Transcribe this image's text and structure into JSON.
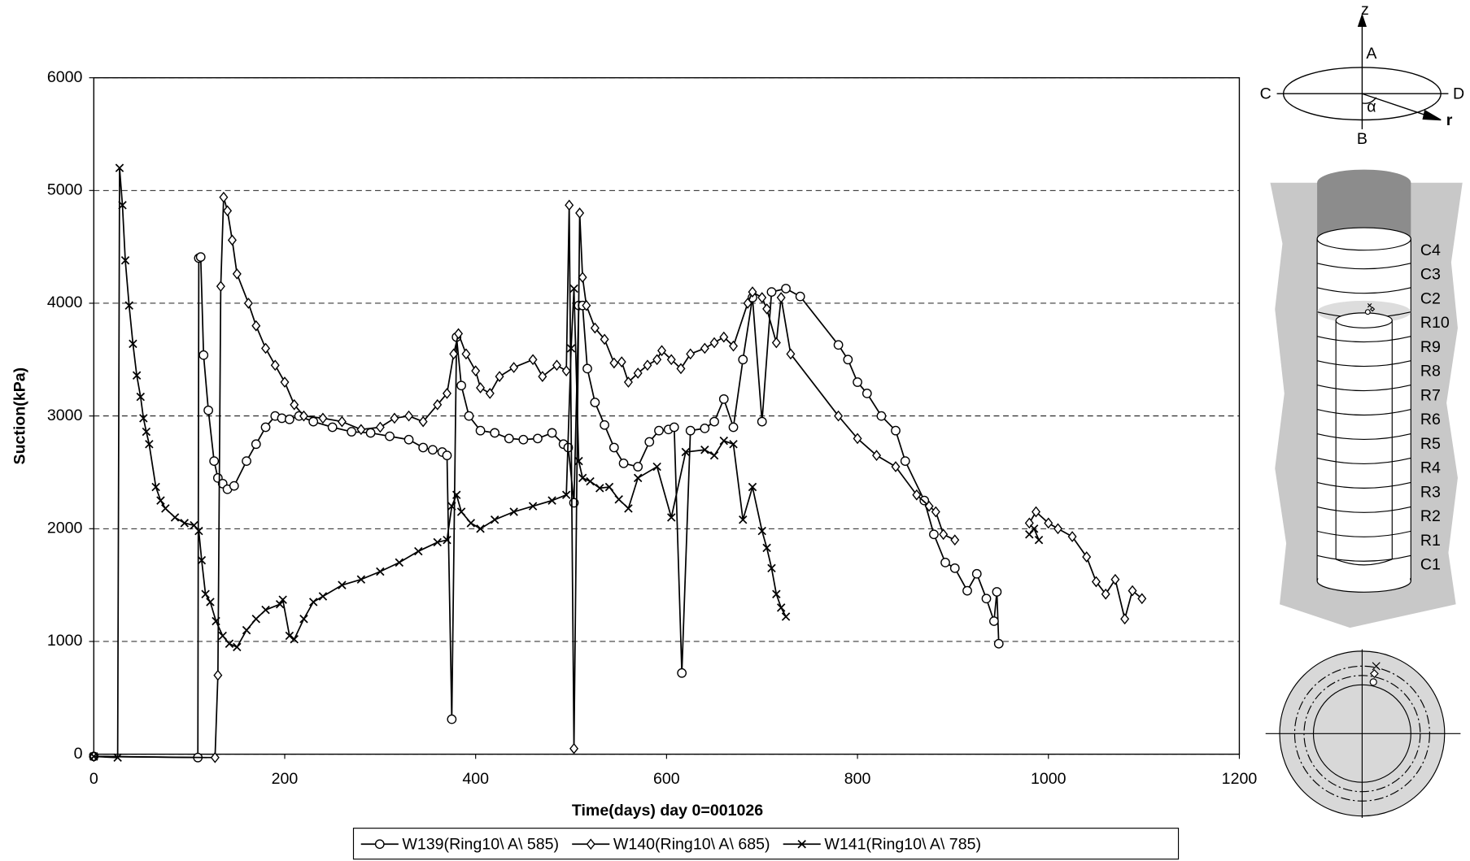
{
  "chart_data": {
    "type": "line",
    "xlabel": "Time(days)  day 0=001026",
    "ylabel": "Suction(kPa)",
    "xlim": [
      0,
      1200
    ],
    "ylim": [
      0,
      6000
    ],
    "xticks": [
      0,
      200,
      400,
      600,
      800,
      1000,
      1200
    ],
    "yticks": [
      0,
      1000,
      2000,
      3000,
      4000,
      5000,
      6000
    ],
    "grid": true,
    "legend": "bottom",
    "series": [
      {
        "name": "W139(Ring10\\ A\\ 585)",
        "color": "#000000",
        "marker": "circle",
        "x": [
          0,
          109,
          110,
          112,
          115,
          120,
          126,
          130,
          135,
          140,
          147,
          160,
          170,
          180,
          190,
          197,
          205,
          215,
          230,
          250,
          270,
          290,
          310,
          330,
          345,
          355,
          365,
          370,
          375,
          380,
          385,
          393,
          405,
          420,
          435,
          450,
          465,
          480,
          492,
          497,
          503,
          508,
          512,
          517,
          525,
          535,
          545,
          555,
          570,
          582,
          592,
          602,
          608,
          616,
          625,
          640,
          650,
          660,
          670,
          680,
          690,
          700,
          710,
          725,
          740,
          780,
          790,
          800,
          810,
          825,
          840,
          850,
          870,
          880,
          892,
          902,
          915,
          925,
          935,
          943,
          946,
          948
        ],
        "values": [
          -20,
          -30,
          4400,
          4410,
          3540,
          3050,
          2600,
          2450,
          2400,
          2350,
          2380,
          2600,
          2750,
          2900,
          3000,
          2980,
          2970,
          3000,
          2950,
          2900,
          2860,
          2850,
          2820,
          2790,
          2720,
          2700,
          2680,
          2650,
          310,
          3700,
          3270,
          3000,
          2870,
          2850,
          2800,
          2790,
          2800,
          2850,
          2750,
          2720,
          2230,
          3980,
          3980,
          3420,
          3120,
          2920,
          2720,
          2580,
          2550,
          2770,
          2870,
          2880,
          2900,
          720,
          2870,
          2890,
          2950,
          3150,
          2900,
          3500,
          4050,
          2950,
          4100,
          4130,
          4060,
          3630,
          3500,
          3300,
          3200,
          3000,
          2870,
          2600,
          2250,
          1950,
          1700,
          1650,
          1450,
          1600,
          1380,
          1180,
          1440,
          980
        ]
      },
      {
        "name": "W140(Ring10\\ A\\ 685)",
        "color": "#000000",
        "marker": "diamond",
        "x": [
          0,
          127,
          130,
          133,
          136,
          140,
          145,
          150,
          162,
          170,
          180,
          190,
          200,
          210,
          220,
          240,
          260,
          280,
          300,
          315,
          330,
          345,
          360,
          370,
          377,
          382,
          390,
          400,
          405,
          415,
          425,
          440,
          460,
          470,
          485,
          495,
          498,
          503,
          509,
          512,
          516,
          525,
          535,
          545,
          553,
          560,
          570,
          580,
          590,
          595,
          605,
          615,
          625,
          640,
          650,
          660,
          670,
          685,
          690,
          700,
          705,
          715,
          720,
          730,
          780,
          800,
          820,
          840,
          862,
          875,
          882,
          890,
          902,
          940,
          980,
          987,
          1000,
          1010,
          1025,
          1040,
          1050,
          1060,
          1070,
          1080,
          1088,
          1098
        ],
        "values": [
          -20,
          -30,
          700,
          4150,
          4940,
          4820,
          4560,
          4260,
          4000,
          3800,
          3600,
          3450,
          3300,
          3100,
          3000,
          2980,
          2950,
          2880,
          2900,
          2980,
          3000,
          2950,
          3100,
          3200,
          3550,
          3730,
          3550,
          3400,
          3250,
          3200,
          3350,
          3430,
          3500,
          3350,
          3450,
          3400,
          4870,
          50,
          4800,
          4230,
          3980,
          3780,
          3680,
          3470,
          3480,
          3300,
          3380,
          3450,
          3500,
          3580,
          3500,
          3420,
          3550,
          3600,
          3650,
          3700,
          3620,
          4000,
          4100,
          4050,
          3950,
          3650,
          4050,
          3550,
          3000,
          2800,
          2650,
          2550,
          2300,
          2200,
          2150,
          1950,
          1900,
          null,
          2050,
          2150,
          2050,
          2000,
          1930,
          1750,
          1530,
          1420,
          1550,
          1200,
          1450,
          1380
        ]
      },
      {
        "name": "W141(Ring10\\ A\\ 785)",
        "color": "#000000",
        "marker": "cross",
        "x": [
          0,
          25,
          27,
          30,
          33,
          37,
          41,
          45,
          49,
          52,
          55,
          58,
          65,
          70,
          75,
          85,
          95,
          105,
          110,
          113,
          117,
          122,
          128,
          135,
          142,
          150,
          160,
          170,
          180,
          195,
          198,
          205,
          210,
          220,
          230,
          240,
          260,
          280,
          300,
          320,
          340,
          360,
          370,
          375,
          380,
          385,
          395,
          405,
          420,
          440,
          460,
          480,
          495,
          500,
          503,
          508,
          512,
          520,
          530,
          540,
          550,
          560,
          570,
          590,
          605,
          620,
          640,
          650,
          660,
          670,
          680,
          690,
          700,
          705,
          710,
          715,
          720,
          725,
          850,
          980,
          985,
          990
        ],
        "values": [
          -20,
          -30,
          5200,
          4870,
          4380,
          3980,
          3640,
          3360,
          3170,
          2980,
          2860,
          2750,
          2370,
          2250,
          2180,
          2100,
          2050,
          2030,
          1980,
          1720,
          1420,
          1350,
          1180,
          1050,
          980,
          950,
          1100,
          1200,
          1280,
          1330,
          1370,
          1050,
          1020,
          1200,
          1350,
          1400,
          1500,
          1550,
          1620,
          1700,
          1800,
          1880,
          1900,
          2200,
          2300,
          2150,
          2050,
          2000,
          2080,
          2150,
          2200,
          2250,
          2300,
          3600,
          4130,
          2600,
          2450,
          2420,
          2360,
          2370,
          2260,
          2180,
          2450,
          2550,
          2100,
          2680,
          2700,
          2650,
          2780,
          2750,
          2080,
          2370,
          1980,
          1830,
          1650,
          1420,
          1300,
          1220,
          null,
          1950,
          2000,
          1900
        ]
      }
    ]
  },
  "diagram": {
    "axis_z": "z",
    "point_a": "A",
    "point_b": "B",
    "point_c": "C",
    "point_d": "D",
    "angle": "α",
    "radius": "r",
    "rings": [
      "C4",
      "C3",
      "C2",
      "R10",
      "R9",
      "R8",
      "R7",
      "R6",
      "R5",
      "R4",
      "R3",
      "R2",
      "R1",
      "C1"
    ]
  }
}
